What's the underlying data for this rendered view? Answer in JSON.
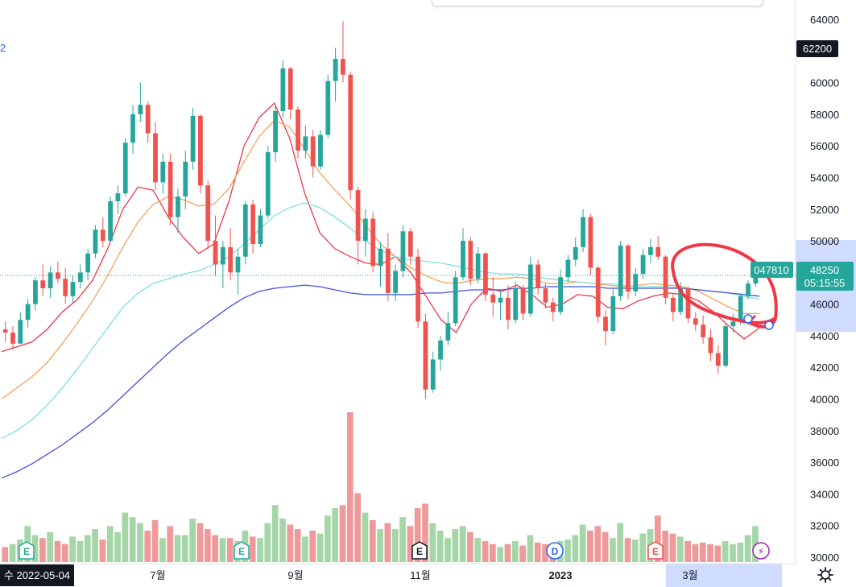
{
  "chart_data": {
    "type": "candlestick",
    "price_axis": {
      "ticks": [
        "64000",
        "62200",
        "60000",
        "58000",
        "56000",
        "54000",
        "52000",
        "50000",
        "48000",
        "46000",
        "44000",
        "42000",
        "40000",
        "38000",
        "36000",
        "34000",
        "32000",
        "30000"
      ],
      "range": [
        30000,
        64000
      ],
      "highlighted_range": [
        45000,
        50000
      ]
    },
    "time_axis": {
      "labels": [
        "수 2022-05-04",
        "7월",
        "9월",
        "11월",
        "2023",
        "3월"
      ]
    },
    "price_tags": {
      "high_tag": "62200",
      "last_price": "48250",
      "countdown": "05:15:55",
      "line_value": "047810"
    },
    "legend_fragment": "2",
    "event_markers": [
      {
        "label": "E",
        "color": "#26a69a"
      },
      {
        "label": "E",
        "color": "#26a69a"
      },
      {
        "label": "E",
        "color": "#131722"
      },
      {
        "label": "D",
        "color": "#2962ff"
      },
      {
        "label": "E",
        "color": "#ef5350"
      },
      {
        "label": "⚡",
        "color": "#9c27b0"
      }
    ],
    "candles": [
      [
        44400,
        44900,
        43600,
        44200
      ],
      [
        44200,
        44600,
        43100,
        43500
      ],
      [
        43500,
        45500,
        43500,
        45000
      ],
      [
        45000,
        46300,
        44500,
        46000
      ],
      [
        46000,
        47700,
        45600,
        47500
      ],
      [
        47500,
        48500,
        46500,
        47000
      ],
      [
        47000,
        48400,
        46400,
        48000
      ],
      [
        48000,
        48700,
        47300,
        47600
      ],
      [
        47600,
        48300,
        46000,
        46500
      ],
      [
        46500,
        47800,
        46100,
        47400
      ],
      [
        47400,
        48500,
        47000,
        48000
      ],
      [
        48000,
        49500,
        47500,
        49200
      ],
      [
        49200,
        51000,
        48900,
        50700
      ],
      [
        50700,
        51500,
        49600,
        50000
      ],
      [
        50000,
        52800,
        50000,
        52500
      ],
      [
        52500,
        53500,
        51700,
        53000
      ],
      [
        53000,
        56500,
        52800,
        56200
      ],
      [
        56200,
        58600,
        55500,
        58000
      ],
      [
        58000,
        60000,
        57500,
        58600
      ],
      [
        58600,
        58800,
        56200,
        56800
      ],
      [
        56800,
        57500,
        53200,
        53700
      ],
      [
        53700,
        55500,
        53000,
        55000
      ],
      [
        55000,
        55500,
        51000,
        51500
      ],
      [
        51500,
        53300,
        50500,
        52800
      ],
      [
        52800,
        55700,
        52000,
        55000
      ],
      [
        55000,
        58400,
        54500,
        57900
      ],
      [
        57900,
        58000,
        53000,
        53500
      ],
      [
        53500,
        53800,
        49500,
        50000
      ],
      [
        50000,
        51600,
        47800,
        48500
      ],
      [
        48500,
        50000,
        47000,
        49600
      ],
      [
        49600,
        50800,
        47500,
        48000
      ],
      [
        48000,
        49500,
        46600,
        49000
      ],
      [
        49000,
        52500,
        48500,
        52300
      ],
      [
        52300,
        52600,
        49200,
        49800
      ],
      [
        49800,
        52000,
        49600,
        51600
      ],
      [
        51600,
        56000,
        51400,
        55600
      ],
      [
        55600,
        58600,
        55000,
        58200
      ],
      [
        58200,
        61400,
        57800,
        60900
      ],
      [
        60900,
        61000,
        57700,
        58300
      ],
      [
        58300,
        58500,
        55200,
        55700
      ],
      [
        55700,
        57300,
        55200,
        56600
      ],
      [
        56600,
        57000,
        54000,
        54700
      ],
      [
        54700,
        57000,
        54500,
        56700
      ],
      [
        56700,
        60500,
        56500,
        60100
      ],
      [
        60100,
        62200,
        58800,
        61500
      ],
      [
        61500,
        63900,
        60000,
        60500
      ],
      [
        60500,
        60700,
        52600,
        53200
      ],
      [
        53200,
        53400,
        48500,
        50000
      ],
      [
        50000,
        52000,
        49000,
        51400
      ],
      [
        51400,
        51800,
        48000,
        48400
      ],
      [
        48400,
        49900,
        47100,
        49500
      ],
      [
        49500,
        50500,
        46200,
        46700
      ],
      [
        46700,
        48500,
        46200,
        48100
      ],
      [
        48100,
        51000,
        47700,
        50600
      ],
      [
        50600,
        50800,
        48500,
        49000
      ],
      [
        49000,
        49500,
        44500,
        44900
      ],
      [
        44900,
        45400,
        40000,
        40600
      ],
      [
        40600,
        43000,
        40400,
        42500
      ],
      [
        42500,
        44000,
        41800,
        43700
      ],
      [
        43700,
        45500,
        43400,
        44800
      ],
      [
        44800,
        48100,
        44600,
        47700
      ],
      [
        47700,
        50800,
        47500,
        50000
      ],
      [
        50000,
        50200,
        47200,
        47600
      ],
      [
        47600,
        49600,
        47300,
        49200
      ],
      [
        49200,
        49300,
        46200,
        46600
      ],
      [
        46600,
        47700,
        45200,
        46100
      ],
      [
        46100,
        46800,
        45000,
        46400
      ],
      [
        46400,
        47200,
        44400,
        45000
      ],
      [
        45000,
        47400,
        44800,
        47000
      ],
      [
        47000,
        47200,
        45000,
        45400
      ],
      [
        45400,
        49000,
        45200,
        48500
      ],
      [
        48500,
        48800,
        46600,
        47000
      ],
      [
        47000,
        47300,
        45700,
        46100
      ],
      [
        46100,
        46400,
        44900,
        45500
      ],
      [
        45500,
        48200,
        45300,
        47700
      ],
      [
        47700,
        49100,
        47400,
        48800
      ],
      [
        48800,
        50200,
        48400,
        49600
      ],
      [
        49600,
        52000,
        49300,
        51500
      ],
      [
        51500,
        51700,
        47800,
        48300
      ],
      [
        48300,
        48400,
        44800,
        45200
      ],
      [
        45200,
        45600,
        43400,
        44300
      ],
      [
        44300,
        47000,
        44100,
        46500
      ],
      [
        46500,
        50000,
        46200,
        49700
      ],
      [
        49700,
        49800,
        46300,
        46800
      ],
      [
        46800,
        48300,
        46500,
        47900
      ],
      [
        47900,
        49500,
        47600,
        49100
      ],
      [
        49100,
        50100,
        48600,
        49600
      ],
      [
        49600,
        50300,
        48800,
        49000
      ],
      [
        49000,
        49100,
        46000,
        46400
      ],
      [
        46400,
        46700,
        44900,
        45500
      ],
      [
        45500,
        47400,
        45300,
        47000
      ],
      [
        47000,
        47100,
        44800,
        45100
      ],
      [
        45100,
        45500,
        44300,
        44700
      ],
      [
        44700,
        45300,
        43500,
        43900
      ],
      [
        43900,
        44400,
        42400,
        42900
      ],
      [
        42900,
        43400,
        41600,
        42100
      ],
      [
        42100,
        44800,
        42000,
        44600
      ],
      [
        44600,
        45400,
        44200,
        44900
      ],
      [
        44900,
        46700,
        44700,
        46500
      ],
      [
        46500,
        47500,
        46300,
        47300
      ],
      [
        47300,
        48400,
        47100,
        48250
      ]
    ],
    "moving_averages": [
      {
        "color": "#f23645",
        "values": [
          43000,
          43300,
          43600,
          44400,
          45500,
          46300,
          47500,
          49500,
          52000,
          53400,
          53200,
          51500,
          50200,
          49200,
          49800,
          52500,
          56000,
          57800,
          58700,
          56500,
          53000,
          50500,
          49500,
          49000,
          48600,
          48500,
          49000,
          48000,
          46500,
          45000,
          44200,
          46000,
          47000,
          46800,
          47200,
          46600,
          45800,
          46000,
          46600,
          46500,
          45800,
          45700,
          46200,
          46500,
          46700,
          46600,
          46200,
          45500,
          44600,
          43800,
          44500
        ]
      },
      {
        "color": "#f7a35c",
        "values": [
          40000,
          40700,
          41400,
          42300,
          43500,
          44800,
          46200,
          47800,
          49600,
          51200,
          52300,
          52800,
          52600,
          52200,
          52300,
          53300,
          55000,
          56600,
          57600,
          57200,
          55800,
          54300,
          53200,
          52200,
          51000,
          49800,
          49000,
          48300,
          47800,
          47400,
          47300,
          47500,
          47600,
          47600,
          47700,
          47600,
          47300,
          47300,
          47400,
          47300,
          47200,
          47100,
          47200,
          47300,
          47200,
          47100,
          46800,
          46300,
          45800,
          45400,
          45400
        ]
      },
      {
        "color": "#7ee0e0",
        "values": [
          37500,
          38000,
          38700,
          39600,
          40700,
          41900,
          43200,
          44500,
          45800,
          46700,
          47300,
          47600,
          47900,
          48100,
          48500,
          49000,
          49800,
          50700,
          51600,
          52100,
          52400,
          52100,
          51500,
          50800,
          50000,
          49400,
          49000,
          48800,
          48700,
          48600,
          48400,
          48200,
          48000,
          47900,
          47900,
          47800,
          47600,
          47500,
          47400,
          47300,
          47300,
          47200,
          47100,
          47100,
          47100,
          47000,
          46900,
          46800,
          46700,
          46500,
          46300
        ]
      },
      {
        "color": "#3f51e0",
        "values": [
          35000,
          35400,
          35900,
          36500,
          37100,
          37800,
          38500,
          39300,
          40200,
          41100,
          42000,
          42900,
          43700,
          44400,
          45100,
          45800,
          46400,
          46800,
          47000,
          47100,
          47200,
          47100,
          46900,
          46700,
          46600,
          46600,
          46600,
          46600,
          46700,
          46700,
          46800,
          46900,
          46900,
          46900,
          47000,
          47000,
          47100,
          47100,
          47100,
          47100,
          47000,
          47000,
          47000,
          47000,
          47000,
          47000,
          46900,
          46800,
          46700,
          46600,
          46500
        ]
      }
    ],
    "volumes": [
      {
        "v": 0.1,
        "c": "#ef9a9a"
      },
      {
        "v": 0.12,
        "c": "#a5d6a7"
      },
      {
        "v": 0.15,
        "c": "#a5d6a7"
      },
      {
        "v": 0.24,
        "c": "#a5d6a7"
      },
      {
        "v": 0.18,
        "c": "#a5d6a7"
      },
      {
        "v": 0.16,
        "c": "#ef9a9a"
      },
      {
        "v": 0.2,
        "c": "#a5d6a7"
      },
      {
        "v": 0.14,
        "c": "#ef9a9a"
      },
      {
        "v": 0.12,
        "c": "#ef9a9a"
      },
      {
        "v": 0.17,
        "c": "#a5d6a7"
      },
      {
        "v": 0.14,
        "c": "#a5d6a7"
      },
      {
        "v": 0.18,
        "c": "#a5d6a7"
      },
      {
        "v": 0.22,
        "c": "#a5d6a7"
      },
      {
        "v": 0.15,
        "c": "#ef9a9a"
      },
      {
        "v": 0.24,
        "c": "#a5d6a7"
      },
      {
        "v": 0.2,
        "c": "#a5d6a7"
      },
      {
        "v": 0.33,
        "c": "#a5d6a7"
      },
      {
        "v": 0.3,
        "c": "#a5d6a7"
      },
      {
        "v": 0.26,
        "c": "#a5d6a7"
      },
      {
        "v": 0.21,
        "c": "#ef9a9a"
      },
      {
        "v": 0.28,
        "c": "#ef9a9a"
      },
      {
        "v": 0.16,
        "c": "#a5d6a7"
      },
      {
        "v": 0.24,
        "c": "#ef9a9a"
      },
      {
        "v": 0.18,
        "c": "#a5d6a7"
      },
      {
        "v": 0.18,
        "c": "#a5d6a7"
      },
      {
        "v": 0.29,
        "c": "#a5d6a7"
      },
      {
        "v": 0.26,
        "c": "#ef9a9a"
      },
      {
        "v": 0.22,
        "c": "#ef9a9a"
      },
      {
        "v": 0.18,
        "c": "#ef9a9a"
      },
      {
        "v": 0.16,
        "c": "#a5d6a7"
      },
      {
        "v": 0.16,
        "c": "#ef9a9a"
      },
      {
        "v": 0.14,
        "c": "#a5d6a7"
      },
      {
        "v": 0.21,
        "c": "#a5d6a7"
      },
      {
        "v": 0.17,
        "c": "#ef9a9a"
      },
      {
        "v": 0.16,
        "c": "#a5d6a7"
      },
      {
        "v": 0.26,
        "c": "#a5d6a7"
      },
      {
        "v": 0.38,
        "c": "#a5d6a7"
      },
      {
        "v": 0.29,
        "c": "#a5d6a7"
      },
      {
        "v": 0.25,
        "c": "#ef9a9a"
      },
      {
        "v": 0.22,
        "c": "#ef9a9a"
      },
      {
        "v": 0.17,
        "c": "#a5d6a7"
      },
      {
        "v": 0.21,
        "c": "#ef9a9a"
      },
      {
        "v": 0.19,
        "c": "#a5d6a7"
      },
      {
        "v": 0.31,
        "c": "#a5d6a7"
      },
      {
        "v": 0.36,
        "c": "#a5d6a7"
      },
      {
        "v": 0.38,
        "c": "#ef9a9a"
      },
      {
        "v": 1.0,
        "c": "#ef9a9a"
      },
      {
        "v": 0.46,
        "c": "#ef9a9a"
      },
      {
        "v": 0.33,
        "c": "#a5d6a7"
      },
      {
        "v": 0.28,
        "c": "#ef9a9a"
      },
      {
        "v": 0.22,
        "c": "#a5d6a7"
      },
      {
        "v": 0.26,
        "c": "#ef9a9a"
      },
      {
        "v": 0.22,
        "c": "#a5d6a7"
      },
      {
        "v": 0.3,
        "c": "#a5d6a7"
      },
      {
        "v": 0.24,
        "c": "#ef9a9a"
      },
      {
        "v": 0.36,
        "c": "#ef9a9a"
      },
      {
        "v": 0.39,
        "c": "#ef9a9a"
      },
      {
        "v": 0.26,
        "c": "#a5d6a7"
      },
      {
        "v": 0.21,
        "c": "#a5d6a7"
      },
      {
        "v": 0.16,
        "c": "#a5d6a7"
      },
      {
        "v": 0.22,
        "c": "#a5d6a7"
      },
      {
        "v": 0.24,
        "c": "#a5d6a7"
      },
      {
        "v": 0.2,
        "c": "#ef9a9a"
      },
      {
        "v": 0.16,
        "c": "#a5d6a7"
      },
      {
        "v": 0.14,
        "c": "#ef9a9a"
      },
      {
        "v": 0.12,
        "c": "#ef9a9a"
      },
      {
        "v": 0.1,
        "c": "#a5d6a7"
      },
      {
        "v": 0.12,
        "c": "#ef9a9a"
      },
      {
        "v": 0.14,
        "c": "#a5d6a7"
      },
      {
        "v": 0.11,
        "c": "#ef9a9a"
      },
      {
        "v": 0.18,
        "c": "#a5d6a7"
      },
      {
        "v": 0.13,
        "c": "#ef9a9a"
      },
      {
        "v": 0.12,
        "c": "#ef9a9a"
      },
      {
        "v": 0.1,
        "c": "#ef9a9a"
      },
      {
        "v": 0.14,
        "c": "#a5d6a7"
      },
      {
        "v": 0.15,
        "c": "#a5d6a7"
      },
      {
        "v": 0.18,
        "c": "#a5d6a7"
      },
      {
        "v": 0.25,
        "c": "#a5d6a7"
      },
      {
        "v": 0.21,
        "c": "#ef9a9a"
      },
      {
        "v": 0.24,
        "c": "#ef9a9a"
      },
      {
        "v": 0.2,
        "c": "#ef9a9a"
      },
      {
        "v": 0.16,
        "c": "#a5d6a7"
      },
      {
        "v": 0.26,
        "c": "#a5d6a7"
      },
      {
        "v": 0.16,
        "c": "#ef9a9a"
      },
      {
        "v": 0.15,
        "c": "#a5d6a7"
      },
      {
        "v": 0.19,
        "c": "#a5d6a7"
      },
      {
        "v": 0.22,
        "c": "#a5d6a7"
      },
      {
        "v": 0.31,
        "c": "#ef9a9a"
      },
      {
        "v": 0.21,
        "c": "#ef9a9a"
      },
      {
        "v": 0.19,
        "c": "#ef9a9a"
      },
      {
        "v": 0.17,
        "c": "#a5d6a7"
      },
      {
        "v": 0.14,
        "c": "#ef9a9a"
      },
      {
        "v": 0.12,
        "c": "#ef9a9a"
      },
      {
        "v": 0.13,
        "c": "#ef9a9a"
      },
      {
        "v": 0.12,
        "c": "#ef9a9a"
      },
      {
        "v": 0.11,
        "c": "#ef9a9a"
      },
      {
        "v": 0.14,
        "c": "#a5d6a7"
      },
      {
        "v": 0.12,
        "c": "#a5d6a7"
      },
      {
        "v": 0.13,
        "c": "#a5d6a7"
      },
      {
        "v": 0.18,
        "c": "#a5d6a7"
      },
      {
        "v": 0.24,
        "c": "#a5d6a7"
      }
    ],
    "colors": {
      "up": "#26a69a",
      "down": "#ef5350",
      "annotation": "#f23645",
      "axis_highlight": "#c8d6ff",
      "price_tag": "#26a69a"
    }
  }
}
